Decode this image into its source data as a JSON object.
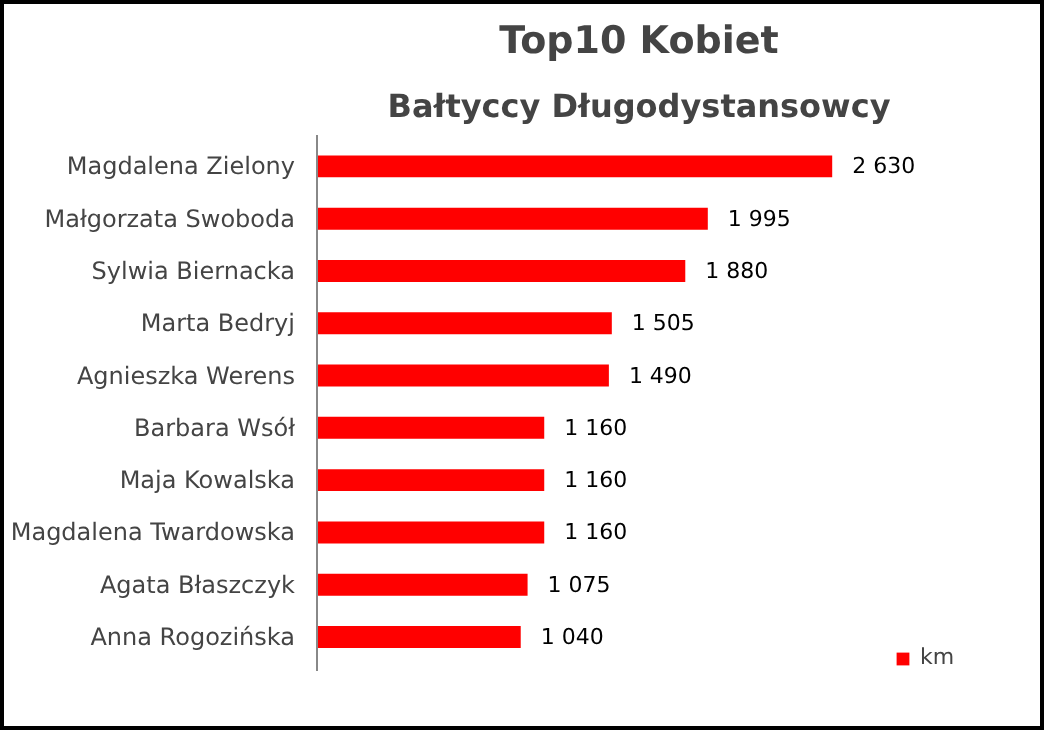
{
  "chart_data": {
    "type": "bar",
    "orientation": "horizontal",
    "title": "Top10 Kobiet",
    "subtitle": "Bałtyccy Długodystansowcy",
    "categories": [
      "Magdalena Zielony",
      "Małgorzata Swoboda",
      "Sylwia Biernacka",
      "Marta Bedryj",
      "Agnieszka Werens",
      "Barbara Wsół",
      "Maja Kowalska",
      "Magdalena Twardowska",
      "Agata Błaszczyk",
      "Anna Rogozińska"
    ],
    "series": [
      {
        "name": "km",
        "color": "#ff0000",
        "values": [
          2630,
          1995,
          1880,
          1505,
          1490,
          1160,
          1160,
          1160,
          1075,
          1040
        ],
        "value_labels": [
          "2 630",
          "1 995",
          "1 880",
          "1 505",
          "1 490",
          "1 160",
          "1 160",
          "1 160",
          "1 075",
          "1 040"
        ]
      }
    ],
    "legend": "bottom right",
    "grid": false
  }
}
